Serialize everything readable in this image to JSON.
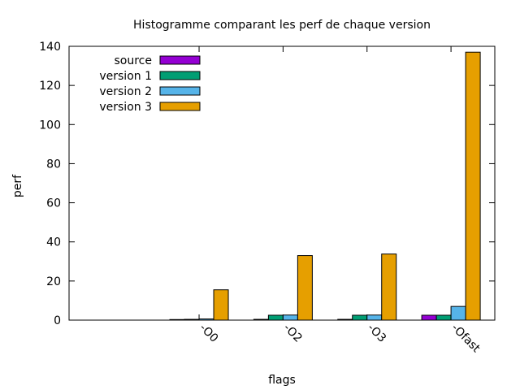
{
  "chart_data": {
    "type": "bar",
    "title": "Histogramme comparant les perf de chaque version",
    "xlabel": "flags",
    "ylabel": "perf",
    "ylim": [
      0,
      140
    ],
    "yticks": [
      0,
      20,
      40,
      60,
      80,
      100,
      120,
      140
    ],
    "categories": [
      "",
      "-O0",
      "-O2",
      "-O3",
      "-Ofast"
    ],
    "grid": false,
    "legend_position": "top-left",
    "series": [
      {
        "name": "source",
        "color": "#9400d3",
        "values": [
          0,
          0.3,
          0.4,
          0.4,
          2.5
        ]
      },
      {
        "name": "version 1",
        "color": "#009e73",
        "values": [
          0,
          0.4,
          2.5,
          2.5,
          2.5
        ]
      },
      {
        "name": "version 2",
        "color": "#56b4e9",
        "values": [
          0,
          0.6,
          2.6,
          2.6,
          7.0
        ]
      },
      {
        "name": "version 3",
        "color": "#e69f00",
        "values": [
          0,
          15.5,
          33.0,
          33.8,
          137.0
        ]
      }
    ]
  }
}
